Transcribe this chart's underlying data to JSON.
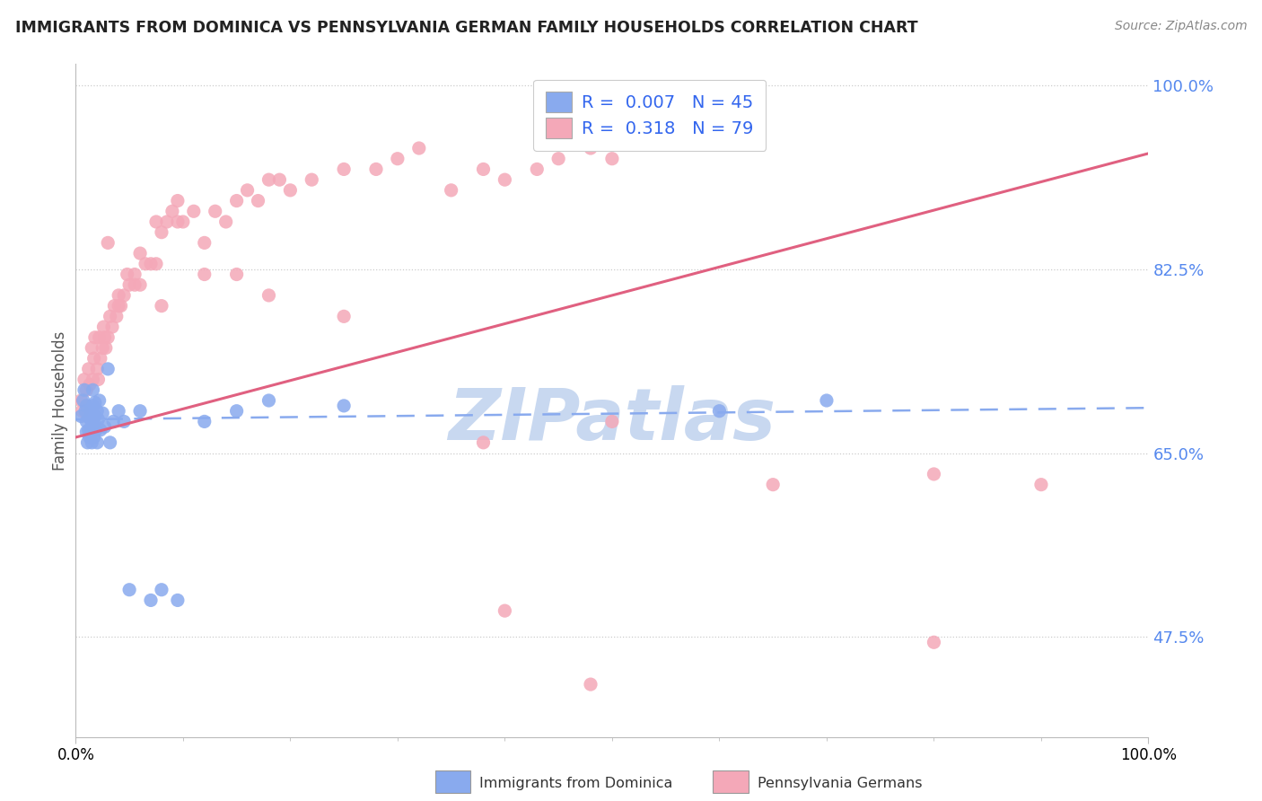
{
  "title": "IMMIGRANTS FROM DOMINICA VS PENNSYLVANIA GERMAN FAMILY HOUSEHOLDS CORRELATION CHART",
  "source": "Source: ZipAtlas.com",
  "ylabel": "Family Households",
  "ytick_vals": [
    0.475,
    0.65,
    0.825,
    1.0
  ],
  "ytick_labels": [
    "47.5%",
    "65.0%",
    "82.5%",
    "100.0%"
  ],
  "xtick_vals": [
    0.0,
    1.0
  ],
  "xtick_labels": [
    "0.0%",
    "100.0%"
  ],
  "legend1_R": "0.007",
  "legend1_N": "45",
  "legend2_R": "0.318",
  "legend2_N": "79",
  "legend_label1_bottom": "Immigrants from Dominica",
  "legend_label2_bottom": "Pennsylvania Germans",
  "blue_color": "#89aaee",
  "pink_color": "#f4a8b8",
  "blue_line_color": "#89aaee",
  "pink_line_color": "#e06080",
  "blue_line_y0": 0.682,
  "blue_line_y1": 0.693,
  "pink_line_y0": 0.665,
  "pink_line_y1": 0.935,
  "blue_scatter_x": [
    0.005,
    0.007,
    0.008,
    0.009,
    0.01,
    0.01,
    0.01,
    0.011,
    0.012,
    0.013,
    0.013,
    0.014,
    0.015,
    0.015,
    0.015,
    0.016,
    0.016,
    0.017,
    0.017,
    0.018,
    0.018,
    0.019,
    0.02,
    0.02,
    0.021,
    0.022,
    0.023,
    0.025,
    0.027,
    0.03,
    0.032,
    0.035,
    0.04,
    0.045,
    0.05,
    0.06,
    0.07,
    0.08,
    0.095,
    0.12,
    0.15,
    0.18,
    0.25,
    0.6,
    0.7
  ],
  "blue_scatter_y": [
    0.685,
    0.7,
    0.71,
    0.69,
    0.67,
    0.68,
    0.695,
    0.66,
    0.672,
    0.683,
    0.665,
    0.69,
    0.672,
    0.66,
    0.68,
    0.695,
    0.71,
    0.665,
    0.678,
    0.685,
    0.698,
    0.672,
    0.66,
    0.69,
    0.682,
    0.7,
    0.672,
    0.688,
    0.675,
    0.73,
    0.66,
    0.68,
    0.69,
    0.68,
    0.52,
    0.69,
    0.51,
    0.52,
    0.51,
    0.68,
    0.69,
    0.7,
    0.695,
    0.69,
    0.7
  ],
  "pink_scatter_x": [
    0.005,
    0.006,
    0.008,
    0.01,
    0.012,
    0.013,
    0.015,
    0.016,
    0.017,
    0.018,
    0.02,
    0.021,
    0.022,
    0.023,
    0.025,
    0.026,
    0.027,
    0.028,
    0.03,
    0.032,
    0.034,
    0.036,
    0.038,
    0.04,
    0.042,
    0.045,
    0.048,
    0.05,
    0.055,
    0.06,
    0.065,
    0.07,
    0.075,
    0.08,
    0.085,
    0.09,
    0.095,
    0.1,
    0.11,
    0.12,
    0.13,
    0.14,
    0.15,
    0.16,
    0.17,
    0.18,
    0.19,
    0.2,
    0.22,
    0.25,
    0.28,
    0.3,
    0.32,
    0.35,
    0.38,
    0.4,
    0.43,
    0.45,
    0.48,
    0.5,
    0.03,
    0.055,
    0.075,
    0.095,
    0.12,
    0.15,
    0.18,
    0.25,
    0.38,
    0.5,
    0.65,
    0.8,
    0.9,
    0.04,
    0.06,
    0.08,
    0.48,
    0.4,
    0.8
  ],
  "pink_scatter_y": [
    0.7,
    0.69,
    0.72,
    0.71,
    0.73,
    0.715,
    0.75,
    0.72,
    0.74,
    0.76,
    0.73,
    0.72,
    0.76,
    0.74,
    0.75,
    0.77,
    0.76,
    0.75,
    0.76,
    0.78,
    0.77,
    0.79,
    0.78,
    0.8,
    0.79,
    0.8,
    0.82,
    0.81,
    0.82,
    0.84,
    0.83,
    0.83,
    0.87,
    0.86,
    0.87,
    0.88,
    0.89,
    0.87,
    0.88,
    0.85,
    0.88,
    0.87,
    0.89,
    0.9,
    0.89,
    0.91,
    0.91,
    0.9,
    0.91,
    0.92,
    0.92,
    0.93,
    0.94,
    0.9,
    0.92,
    0.91,
    0.92,
    0.93,
    0.94,
    0.93,
    0.85,
    0.81,
    0.83,
    0.87,
    0.82,
    0.82,
    0.8,
    0.78,
    0.66,
    0.68,
    0.62,
    0.63,
    0.62,
    0.79,
    0.81,
    0.79,
    0.43,
    0.5,
    0.47
  ],
  "xlim": [
    0.0,
    1.0
  ],
  "ylim": [
    0.38,
    1.02
  ],
  "watermark": "ZIPatlas",
  "watermark_color": "#c8d8f0",
  "background_color": "#ffffff"
}
